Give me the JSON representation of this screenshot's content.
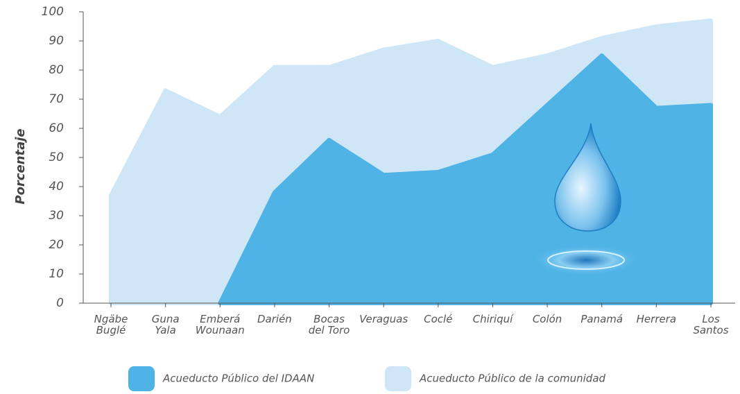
{
  "chart_data": {
    "type": "area",
    "y_label": "Porcentaje",
    "categories": [
      "Ngäbe\nBuglé",
      "Guna\nYala",
      "Emberá\nWounaan",
      "Darién",
      "Bocas\ndel Toro",
      "Veraguas",
      "Coclé",
      "Chiriquí",
      "Colón",
      "Panamá",
      "Herrera",
      "Los\nSantos"
    ],
    "series": [
      {
        "name": "Acueducto Público de la comunidad",
        "color": "#cfe6f7",
        "values": [
          37,
          73,
          64,
          81,
          81,
          87,
          90,
          81,
          85,
          91,
          95,
          97
        ]
      },
      {
        "name": "Acueducto Público del IDAAN",
        "color": "#4fb3e6",
        "values": [
          null,
          null,
          0,
          38,
          56,
          44,
          45,
          51,
          68,
          85,
          67,
          68
        ]
      }
    ],
    "legend_order": [
      1,
      0
    ],
    "ylim": [
      0,
      100
    ],
    "yticks": [
      0,
      10,
      20,
      30,
      40,
      50,
      60,
      70,
      80,
      90,
      100
    ]
  }
}
